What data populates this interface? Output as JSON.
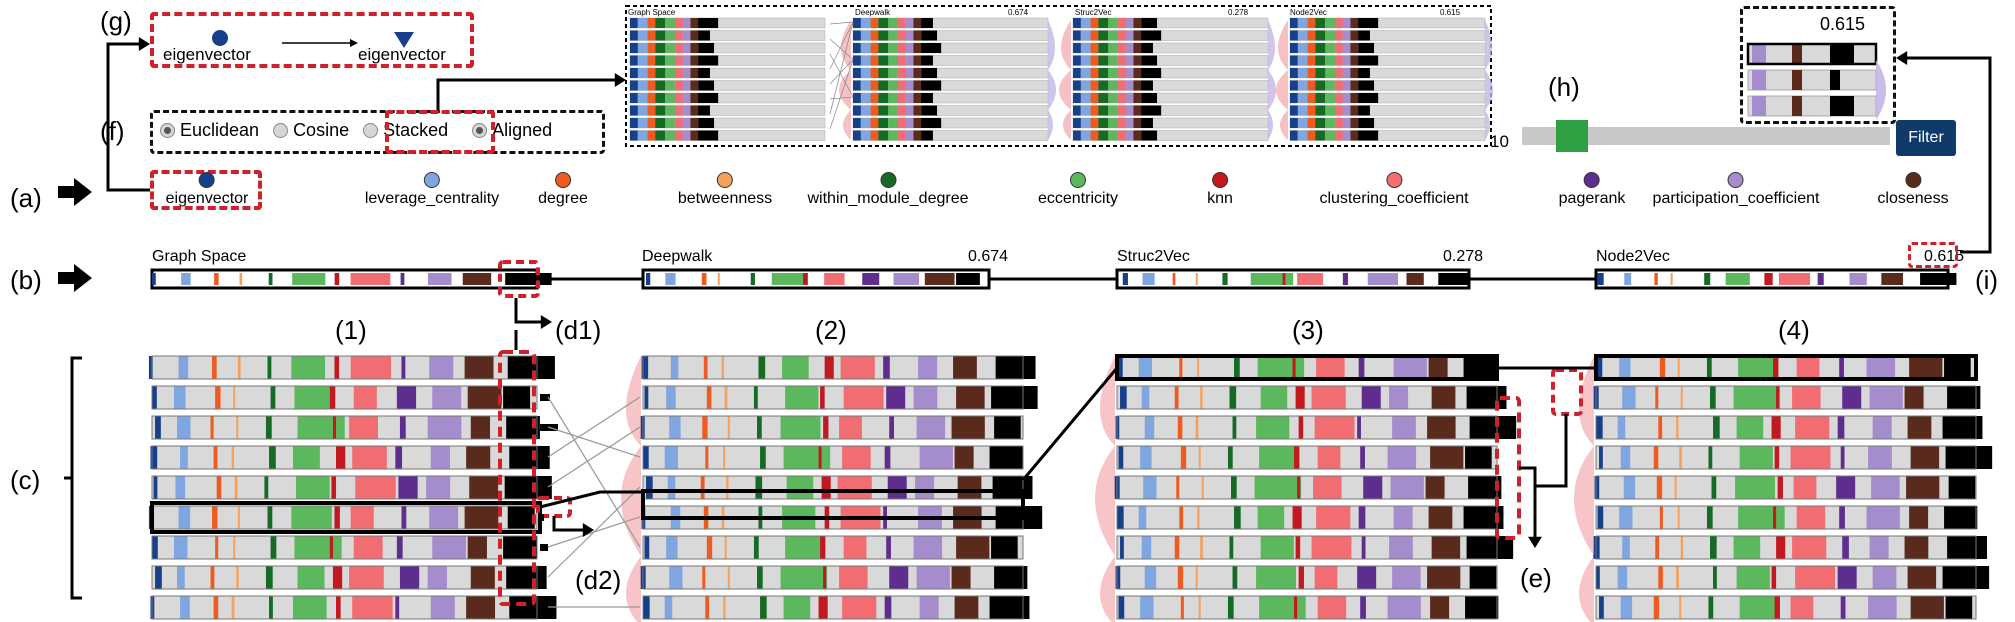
{
  "panel_labels": {
    "a": "(a)",
    "b": "(b)",
    "c": "(c)",
    "f": "(f)",
    "g": "(g)",
    "h": "(h)",
    "i": "(i)",
    "d1": "(d1)",
    "d2": "(d2)",
    "e": "(e)",
    "n1": "(1)",
    "n2": "(2)",
    "n3": "(3)",
    "n4": "(4)"
  },
  "g_panel": {
    "from": "eigenvector",
    "to": "eigenvector"
  },
  "f_panel": {
    "options": [
      {
        "label": "Euclidean",
        "selected": true
      },
      {
        "label": "Cosine",
        "selected": false
      },
      {
        "label": "Stacked",
        "selected": false
      },
      {
        "label": "Aligned",
        "selected": true
      }
    ]
  },
  "h_panel": {
    "value": "10",
    "filter_label": "Filter",
    "slider_fraction": 0.12
  },
  "zoom_i": {
    "score": "0.615"
  },
  "legend": [
    {
      "label": "eigenvector",
      "color": "#173f8a"
    },
    {
      "label": "leverage_centrality",
      "color": "#7fa6e0"
    },
    {
      "label": "degree",
      "color": "#ef5b1f"
    },
    {
      "label": "betweenness",
      "color": "#f7a05a"
    },
    {
      "label": "within_module_degree",
      "color": "#166b24"
    },
    {
      "label": "eccentricity",
      "color": "#5cb85c"
    },
    {
      "label": "knn",
      "color": "#c2181f"
    },
    {
      "label": "clustering_coefficient",
      "color": "#f26d72"
    },
    {
      "label": "pagerank",
      "color": "#5e2d8e"
    },
    {
      "label": "participation_coefficient",
      "color": "#a58ccc"
    },
    {
      "label": "closeness",
      "color": "#5a2a1c"
    }
  ],
  "spaces": [
    {
      "name": "Graph Space",
      "score": ""
    },
    {
      "name": "Deepwalk",
      "score": "0.674"
    },
    {
      "name": "Struc2Vec",
      "score": "0.278"
    },
    {
      "name": "Node2Vec",
      "score": "0.615"
    }
  ],
  "thumbnail": {
    "titles": [
      "Graph Space",
      "Deepwalk",
      "Struc2Vec",
      "Node2Vec"
    ],
    "scores": [
      "",
      "0.674",
      "0.278",
      "0.615"
    ]
  }
}
